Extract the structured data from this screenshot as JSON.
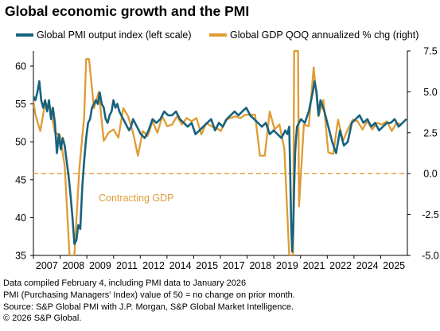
{
  "title": "Global economic growth and the PMI",
  "chart_data": {
    "type": "line",
    "title": "Global economic growth and the PMI",
    "grid": false,
    "legend_position": "top",
    "x_ticks": [
      "2007",
      "2008",
      "2009",
      "2011",
      "2012",
      "2014",
      "2015",
      "2017",
      "2018",
      "2019",
      "2021",
      "2022",
      "2024",
      "2025"
    ],
    "y_left": {
      "ticks": [
        "35",
        "40",
        "45",
        "50",
        "55",
        "60"
      ],
      "range": [
        35,
        62
      ]
    },
    "y_right": {
      "ticks": [
        "-5.0",
        "-2.5",
        "0.0",
        "2.5",
        "5.0",
        "7.5"
      ],
      "range": [
        -5.0,
        7.5
      ]
    },
    "series": [
      {
        "name": "Global PMI output index (left scale)",
        "axis": "left",
        "color": "#17637f",
        "x": [
          2006.9,
          2007.0,
          2007.1,
          2007.2,
          2007.3,
          2007.4,
          2007.5,
          2007.6,
          2007.7,
          2007.8,
          2007.9,
          2008.0,
          2008.1,
          2008.2,
          2008.3,
          2008.4,
          2008.5,
          2008.6,
          2008.7,
          2008.8,
          2008.9,
          2009.0,
          2009.1,
          2009.2,
          2009.3,
          2009.4,
          2009.5,
          2009.6,
          2009.7,
          2009.8,
          2009.9,
          2010.0,
          2010.1,
          2010.2,
          2010.3,
          2010.4,
          2010.5,
          2010.6,
          2010.7,
          2010.8,
          2010.9,
          2011.0,
          2011.1,
          2011.2,
          2011.3,
          2011.4,
          2011.5,
          2011.6,
          2011.7,
          2011.8,
          2011.9,
          2012.0,
          2012.2,
          2012.4,
          2012.6,
          2012.8,
          2013.0,
          2013.2,
          2013.4,
          2013.6,
          2013.8,
          2014.0,
          2014.2,
          2014.4,
          2014.6,
          2014.8,
          2015.0,
          2015.2,
          2015.4,
          2015.6,
          2015.8,
          2016.0,
          2016.2,
          2016.4,
          2016.6,
          2016.8,
          2017.0,
          2017.2,
          2017.4,
          2017.6,
          2017.8,
          2018.0,
          2018.2,
          2018.4,
          2018.6,
          2018.8,
          2019.0,
          2019.2,
          2019.4,
          2019.6,
          2019.8,
          2019.9,
          2020.0,
          2020.05,
          2020.1,
          2020.15,
          2020.2,
          2020.25,
          2020.3,
          2020.35,
          2020.4,
          2020.5,
          2020.6,
          2020.8,
          2021.0,
          2021.2,
          2021.3,
          2021.4,
          2021.5,
          2021.6,
          2021.8,
          2022.0,
          2022.2,
          2022.4,
          2022.6,
          2022.8,
          2023.0,
          2023.2,
          2023.4,
          2023.6,
          2023.8,
          2024.0,
          2024.2,
          2024.4,
          2024.6,
          2024.8,
          2025.0,
          2025.2,
          2025.4,
          2025.6,
          2025.8,
          2026.0
        ],
        "values": [
          56.0,
          55.5,
          56.5,
          58.0,
          55.5,
          54.5,
          55.5,
          54.0,
          55.5,
          53.0,
          54.5,
          52.5,
          48.5,
          51.0,
          49.0,
          50.5,
          49.5,
          47.5,
          45.5,
          43.0,
          40.0,
          36.5,
          37.0,
          39.0,
          38.5,
          44.0,
          47.5,
          50.5,
          52.5,
          53.0,
          54.5,
          55.0,
          55.5,
          55.0,
          56.5,
          55.0,
          54.5,
          53.0,
          52.5,
          53.5,
          54.0,
          55.5,
          54.5,
          55.0,
          54.0,
          53.5,
          53.0,
          52.5,
          52.0,
          51.5,
          52.0,
          53.0,
          52.0,
          51.0,
          50.5,
          51.5,
          53.0,
          52.5,
          53.0,
          54.0,
          53.5,
          53.5,
          54.0,
          53.0,
          52.5,
          52.0,
          52.5,
          51.0,
          51.5,
          52.0,
          52.5,
          53.0,
          51.5,
          52.5,
          52.0,
          53.0,
          53.5,
          54.0,
          53.5,
          54.0,
          54.5,
          53.5,
          53.0,
          52.5,
          52.0,
          52.5,
          51.0,
          51.5,
          51.0,
          50.5,
          51.5,
          51.0,
          52.0,
          46.0,
          39.0,
          35.5,
          38.0,
          44.0,
          48.5,
          50.5,
          52.0,
          52.5,
          53.0,
          52.5,
          54.0,
          56.5,
          58.0,
          56.5,
          53.5,
          55.5,
          54.0,
          52.0,
          50.0,
          48.5,
          51.5,
          49.5,
          50.0,
          52.5,
          53.0,
          53.5,
          52.5,
          53.0,
          52.0,
          52.5,
          51.5,
          52.0,
          52.5,
          52.5,
          53.0,
          52.0,
          52.5,
          53.0
        ]
      },
      {
        "name": "Global GDP QOQ annualized % chg (right)",
        "axis": "right",
        "color": "#df9b33",
        "x": [
          2006.9,
          2007.0,
          2007.25,
          2007.5,
          2007.75,
          2008.0,
          2008.25,
          2008.5,
          2008.75,
          2009.0,
          2009.25,
          2009.5,
          2009.6,
          2009.75,
          2010.0,
          2010.25,
          2010.5,
          2010.75,
          2011.0,
          2011.25,
          2011.5,
          2011.75,
          2012.0,
          2012.25,
          2012.5,
          2012.75,
          2013.0,
          2013.25,
          2013.5,
          2013.75,
          2014.0,
          2014.25,
          2014.5,
          2014.75,
          2015.0,
          2015.25,
          2015.5,
          2015.75,
          2016.0,
          2016.25,
          2016.5,
          2016.75,
          2017.0,
          2017.25,
          2017.5,
          2017.75,
          2018.0,
          2018.25,
          2018.5,
          2018.75,
          2019.0,
          2019.25,
          2019.5,
          2019.75,
          2020.0,
          2020.2,
          2020.25,
          2020.45,
          2020.5,
          2020.75,
          2021.0,
          2021.25,
          2021.5,
          2021.75,
          2022.0,
          2022.25,
          2022.5,
          2022.75,
          2023.0,
          2023.25,
          2023.5,
          2023.75,
          2024.0,
          2024.25,
          2024.5,
          2024.75,
          2025.0,
          2025.25,
          2025.5,
          2025.75
        ],
        "values": [
          4.4,
          3.6,
          2.6,
          4.3,
          4.1,
          2.5,
          2.4,
          0.5,
          -5.0,
          -5.0,
          0.3,
          3.5,
          7.0,
          7.0,
          4.0,
          5.0,
          2.0,
          2.5,
          2.7,
          2.2,
          4.0,
          3.5,
          2.5,
          1.1,
          2.6,
          2.3,
          3.2,
          2.5,
          3.5,
          2.9,
          3.0,
          3.5,
          3.0,
          3.4,
          3.2,
          3.4,
          2.4,
          3.1,
          2.9,
          2.8,
          2.6,
          3.3,
          3.4,
          3.5,
          3.4,
          3.6,
          3.6,
          3.6,
          1.1,
          1.1,
          3.8,
          2.7,
          3.0,
          1.5,
          -5.0,
          -5.0,
          7.5,
          7.5,
          -2.0,
          3.0,
          2.9,
          6.5,
          3.5,
          4.5,
          1.3,
          1.2,
          3.3,
          2.0,
          2.7,
          3.3,
          3.2,
          2.7,
          3.2,
          2.7,
          3.1,
          3.0,
          3.2,
          2.6,
          3.1,
          3.0
        ]
      }
    ],
    "reference_line": {
      "axis": "right",
      "value": 0.0,
      "color": "#df9b33",
      "style": "dashed"
    },
    "annotations": [
      {
        "text": "Contracting GDP",
        "color": "#df9b33"
      }
    ]
  },
  "footnotes": [
    "Data compiled February 4, including PMI data to January 2026",
    "PMI (Purchasing Managers' Index) value of 50 = no change on prior month.",
    "Source: S&P Global PMI with J.P. Morgan, S&P Global Market Intelligence.",
    "© 2026 S&P Global."
  ]
}
